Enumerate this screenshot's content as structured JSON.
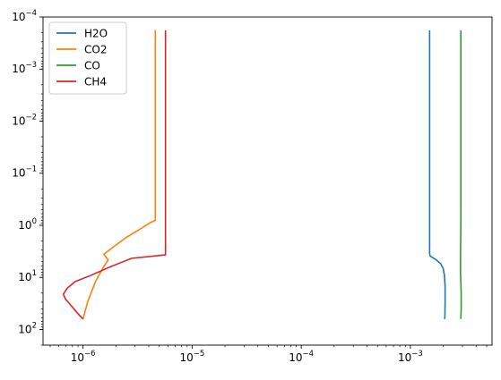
{
  "chart_data": {
    "type": "line",
    "title": "",
    "xlabel": "",
    "ylabel": "",
    "xscale": "log",
    "yscale": "log",
    "y_inverted": true,
    "xlim": [
      4.3e-07,
      0.0056
    ],
    "ylim": [
      200,
      0.0001
    ],
    "grid": false,
    "legend": {
      "placement": "top-left"
    },
    "x_ticks": [
      {
        "value": 1e-06,
        "base": "10",
        "exp": "−6"
      },
      {
        "value": 1e-05,
        "base": "10",
        "exp": "−5"
      },
      {
        "value": 0.0001,
        "base": "10",
        "exp": "−4"
      },
      {
        "value": 0.001,
        "base": "10",
        "exp": "−3"
      }
    ],
    "y_ticks": [
      {
        "value": 0.0001,
        "base": "10",
        "exp": "−4"
      },
      {
        "value": 0.001,
        "base": "10",
        "exp": "−3"
      },
      {
        "value": 0.01,
        "base": "10",
        "exp": "−2"
      },
      {
        "value": 0.1,
        "base": "10",
        "exp": "−1"
      },
      {
        "value": 1,
        "base": "10",
        "exp": "0"
      },
      {
        "value": 10,
        "base": "10",
        "exp": "1"
      },
      {
        "value": 100,
        "base": "10",
        "exp": "2"
      }
    ],
    "series": [
      {
        "name": "H2O",
        "color": "#1f77b4",
        "points": [
          [
            0.0015,
            0.00018
          ],
          [
            0.0015,
            1
          ],
          [
            0.0015,
            3.5
          ],
          [
            0.00152,
            3.9
          ],
          [
            0.0017,
            4.5
          ],
          [
            0.0019,
            5.5
          ],
          [
            0.002,
            6.8
          ],
          [
            0.00205,
            9
          ],
          [
            0.00208,
            15
          ],
          [
            0.00208,
            30
          ],
          [
            0.00207,
            60
          ],
          [
            0.00205,
            63
          ]
        ]
      },
      {
        "name": "CO2",
        "color": "#ff7f0e",
        "points": [
          [
            4.6e-06,
            0.00018
          ],
          [
            4.6e-06,
            0.8
          ],
          [
            4.1e-06,
            0.9
          ],
          [
            3.3e-06,
            1.2
          ],
          [
            2.5e-06,
            1.7
          ],
          [
            1.9e-06,
            2.6
          ],
          [
            1.55e-06,
            3.6
          ],
          [
            1.7e-06,
            4.6
          ],
          [
            1.55e-06,
            6.2
          ],
          [
            1.3e-06,
            12
          ],
          [
            1.1e-06,
            30
          ],
          [
            1e-06,
            63
          ]
        ]
      },
      {
        "name": "CO",
        "color": "#2ca02c",
        "points": [
          [
            0.0029,
            0.00018
          ],
          [
            0.0029,
            1
          ],
          [
            0.00288,
            4
          ],
          [
            0.00288,
            8
          ],
          [
            0.00292,
            20
          ],
          [
            0.00292,
            40
          ],
          [
            0.0029,
            63
          ]
        ]
      },
      {
        "name": "CH4",
        "color": "#d62728",
        "points": [
          [
            5.7e-06,
            0.00018
          ],
          [
            5.7e-06,
            3.7
          ],
          [
            2.8e-06,
            4.3
          ],
          [
            1.8e-06,
            6.2
          ],
          [
            1.2e-06,
            9
          ],
          [
            8.5e-07,
            12
          ],
          [
            7.2e-07,
            16
          ],
          [
            6.6e-07,
            21
          ],
          [
            6.9e-07,
            26
          ],
          [
            7.8e-07,
            35
          ],
          [
            9e-07,
            50
          ],
          [
            1e-06,
            63
          ]
        ]
      }
    ]
  }
}
